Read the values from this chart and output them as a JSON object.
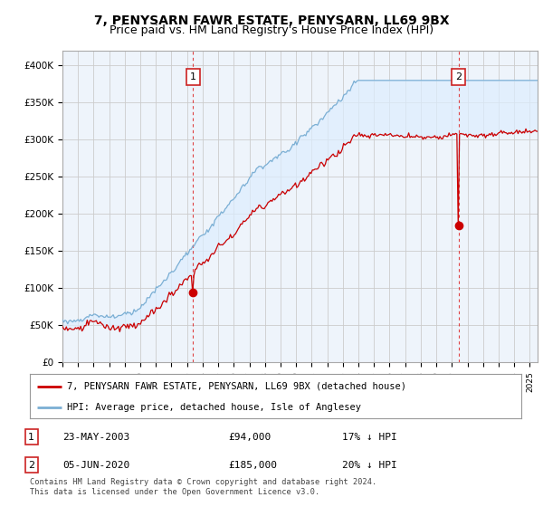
{
  "title": "7, PENYSARN FAWR ESTATE, PENYSARN, LL69 9BX",
  "subtitle": "Price paid vs. HM Land Registry's House Price Index (HPI)",
  "ylim": [
    0,
    420000
  ],
  "yticks": [
    0,
    50000,
    100000,
    150000,
    200000,
    250000,
    300000,
    350000,
    400000
  ],
  "ytick_labels": [
    "£0",
    "£50K",
    "£100K",
    "£150K",
    "£200K",
    "£250K",
    "£300K",
    "£350K",
    "£400K"
  ],
  "xlim_start": 1995.0,
  "xlim_end": 2025.5,
  "hpi_color": "#7bafd4",
  "price_color": "#cc0000",
  "fill_color": "#ddeeff",
  "plot_bg_color": "#eef4fb",
  "purchase1_date": 2003.39,
  "purchase1_price": 94000,
  "purchase1_label": "1",
  "purchase2_date": 2020.43,
  "purchase2_price": 185000,
  "purchase2_label": "2",
  "legend_line1": "7, PENYSARN FAWR ESTATE, PENYSARN, LL69 9BX (detached house)",
  "legend_line2": "HPI: Average price, detached house, Isle of Anglesey",
  "table_row1": [
    "1",
    "23-MAY-2003",
    "£94,000",
    "17% ↓ HPI"
  ],
  "table_row2": [
    "2",
    "05-JUN-2020",
    "£185,000",
    "20% ↓ HPI"
  ],
  "footnote": "Contains HM Land Registry data © Crown copyright and database right 2024.\nThis data is licensed under the Open Government Licence v3.0.",
  "bg_color": "#ffffff",
  "grid_color": "#cccccc",
  "title_fontsize": 10,
  "subtitle_fontsize": 9,
  "tick_fontsize": 7.5
}
